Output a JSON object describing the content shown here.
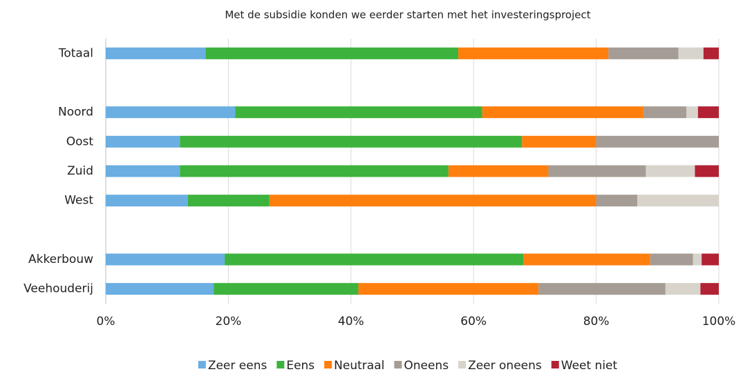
{
  "chart_data": {
    "type": "stacked_barh",
    "title": "Met de subsidie konden we eerder starten met het investeringsproject",
    "categories": [
      "Totaal",
      null,
      "Noord",
      "Oost",
      "Zuid",
      "West",
      null,
      "Akkerbouw",
      "Veehouderij"
    ],
    "series": [
      {
        "name": "Zeer eens",
        "color": "#6aaee2",
        "values": [
          16.3,
          null,
          21.1,
          12.1,
          12.1,
          13.4,
          null,
          19.4,
          17.6
        ]
      },
      {
        "name": "Eens",
        "color": "#3db33d",
        "values": [
          41.2,
          null,
          40.3,
          55.8,
          43.8,
          13.3,
          null,
          48.7,
          23.6
        ]
      },
      {
        "name": "Neutraal",
        "color": "#ff7f0e",
        "values": [
          24.5,
          null,
          26.3,
          12.1,
          16.3,
          53.3,
          null,
          20.7,
          29.4
        ]
      },
      {
        "name": "Oneens",
        "color": "#a59d95",
        "values": [
          11.4,
          null,
          7.0,
          20.0,
          15.9,
          6.7,
          null,
          7.0,
          20.7
        ]
      },
      {
        "name": "Zeer oneens",
        "color": "#d8d4cc",
        "values": [
          4.1,
          null,
          1.9,
          0,
          8.0,
          13.3,
          null,
          1.4,
          5.7
        ]
      },
      {
        "name": "Weet niet",
        "color": "#b22234",
        "values": [
          2.5,
          null,
          3.4,
          0,
          3.9,
          0,
          null,
          2.8,
          3.0
        ]
      }
    ],
    "xlim": [
      0,
      100
    ],
    "xticks": [
      {
        "value": 0,
        "label": "0%"
      },
      {
        "value": 20,
        "label": "20%"
      },
      {
        "value": 40,
        "label": "40%"
      },
      {
        "value": 60,
        "label": "60%"
      },
      {
        "value": 80,
        "label": "80%"
      },
      {
        "value": 100,
        "label": "100%"
      }
    ],
    "grid": true,
    "legend": "bottom"
  }
}
